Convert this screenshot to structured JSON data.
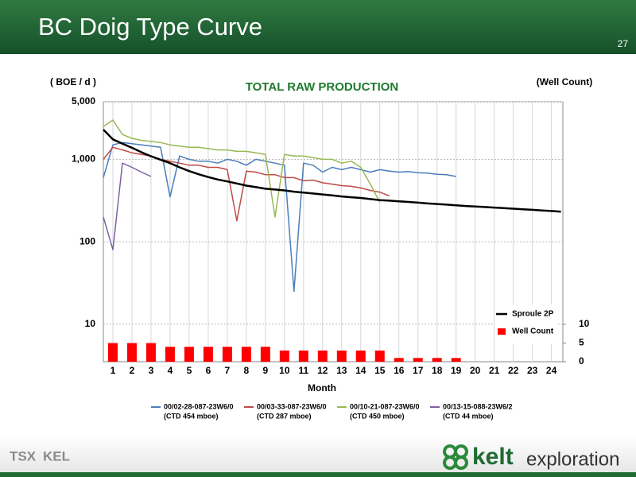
{
  "header": {
    "title": "BC Doig Type Curve",
    "page_number": "27"
  },
  "chart_data": {
    "type": "line",
    "title": "TOTAL RAW PRODUCTION",
    "y_label": "( BOE / d )",
    "y2_label": "(Well Count)",
    "x_label": "Month",
    "log_scale": true,
    "grid": true,
    "legend": "lower right",
    "x": [
      0.5,
      1,
      1.5,
      2,
      2.5,
      3,
      3.5,
      4,
      4.5,
      5,
      5.5,
      6,
      6.5,
      7,
      7.5,
      8,
      8.5,
      9,
      9.5,
      10,
      10.5,
      11,
      11.5,
      12,
      12.5,
      13,
      13.5,
      14,
      14.5,
      15,
      15.5,
      16,
      16.5,
      17,
      17.5,
      18,
      18.5,
      19,
      19.5,
      20,
      20.5,
      21,
      21.5,
      22,
      22.5,
      23,
      23.5,
      24,
      24.5
    ],
    "xlim": [
      0.5,
      24.6
    ],
    "xticks": [
      1,
      2,
      3,
      4,
      5,
      6,
      7,
      8,
      9,
      10,
      11,
      12,
      13,
      14,
      15,
      16,
      17,
      18,
      19,
      20,
      21,
      22,
      23,
      24
    ],
    "ylim": [
      3.5,
      5000
    ],
    "yticks": [
      {
        "value": 5000,
        "label": "5,000"
      },
      {
        "value": 1000,
        "label": "1,000"
      },
      100,
      10
    ],
    "y2lim": [
      0,
      69.6
    ],
    "y2ticks": [
      0,
      5,
      10
    ],
    "series": [
      {
        "name": "00/02-28-087-23W6/0",
        "ctd": "(CTD 454 mboe)",
        "color": "#4a7ebb",
        "type": "line",
        "values": [
          600,
          1500,
          1600,
          1550,
          1500,
          1450,
          1400,
          350,
          1100,
          1000,
          950,
          950,
          900,
          1000,
          950,
          850,
          1000,
          950,
          900,
          850,
          25,
          900,
          850,
          700,
          800,
          750,
          800,
          750,
          700,
          750,
          720,
          700,
          710,
          690,
          680,
          660,
          650,
          620,
          null,
          null,
          null,
          null,
          null,
          null,
          null,
          null,
          null,
          null,
          null
        ]
      },
      {
        "name": "00/03-33-087-23W6/0",
        "ctd": "(CTD 287 mboe)",
        "color": "#be4b48",
        "type": "line",
        "values": [
          1000,
          1400,
          1300,
          1200,
          1150,
          1100,
          1000,
          950,
          900,
          850,
          850,
          800,
          800,
          750,
          180,
          720,
          700,
          650,
          650,
          600,
          600,
          550,
          560,
          520,
          500,
          480,
          470,
          450,
          420,
          400,
          360,
          null,
          null,
          null,
          null,
          null,
          null,
          null,
          null,
          null,
          null,
          null,
          null,
          null,
          null,
          null,
          null,
          null,
          null
        ]
      },
      {
        "name": "00/10-21-087-23W6/0",
        "ctd": "(CTD 450 mboe)",
        "color": "#98b954",
        "type": "line",
        "values": [
          2500,
          3000,
          2000,
          1800,
          1700,
          1650,
          1600,
          1500,
          1450,
          1400,
          1400,
          1350,
          1300,
          1300,
          1250,
          1250,
          1200,
          1150,
          200,
          1150,
          1100,
          1100,
          1050,
          1000,
          1000,
          900,
          950,
          800,
          500,
          300,
          null,
          null,
          null,
          null,
          null,
          null,
          null,
          null,
          null,
          null,
          null,
          null,
          null,
          null,
          null,
          null,
          null,
          null,
          null
        ]
      },
      {
        "name": "00/13-15-088-23W6/2",
        "ctd": "(CTD 44 mboe)",
        "color": "#7d60a0",
        "type": "line",
        "values": [
          200,
          80,
          900,
          800,
          700,
          620,
          null,
          null,
          null,
          null,
          null,
          null,
          null,
          null,
          null,
          null,
          null,
          null,
          null,
          null,
          null,
          null,
          null,
          null,
          null,
          null,
          null,
          null,
          null,
          null,
          null,
          null,
          null,
          null,
          null,
          null,
          null,
          null,
          null,
          null,
          null,
          null,
          null,
          null,
          null,
          null,
          null,
          null,
          null
        ]
      },
      {
        "name": "Sproule 2P",
        "color": "#000000",
        "type": "line",
        "values": [
          2300,
          1750,
          1550,
          1380,
          1220,
          1090,
          990,
          900,
          800,
          720,
          660,
          610,
          570,
          540,
          510,
          480,
          460,
          440,
          430,
          420,
          405,
          395,
          385,
          375,
          365,
          355,
          347,
          340,
          330,
          320,
          315,
          310,
          304,
          298,
          292,
          287,
          282,
          277,
          272,
          268,
          264,
          260,
          256,
          252,
          248,
          244,
          240,
          236,
          232
        ]
      },
      {
        "name": "Well Count",
        "color": "#ff0000",
        "type": "bar",
        "axis": "y2",
        "values": [
          null,
          5,
          null,
          5,
          null,
          5,
          null,
          4,
          null,
          4,
          null,
          4,
          null,
          4,
          null,
          4,
          null,
          4,
          null,
          3,
          null,
          3,
          null,
          3,
          null,
          3,
          null,
          3,
          null,
          3,
          null,
          1,
          null,
          1,
          null,
          1,
          null,
          1,
          null,
          null,
          null,
          null,
          null,
          null,
          null,
          null,
          null,
          null,
          null
        ]
      }
    ]
  },
  "footer": {
    "exchange": "TSX",
    "ticker": "KEL",
    "company": "kelt",
    "tagline": "exploration"
  }
}
